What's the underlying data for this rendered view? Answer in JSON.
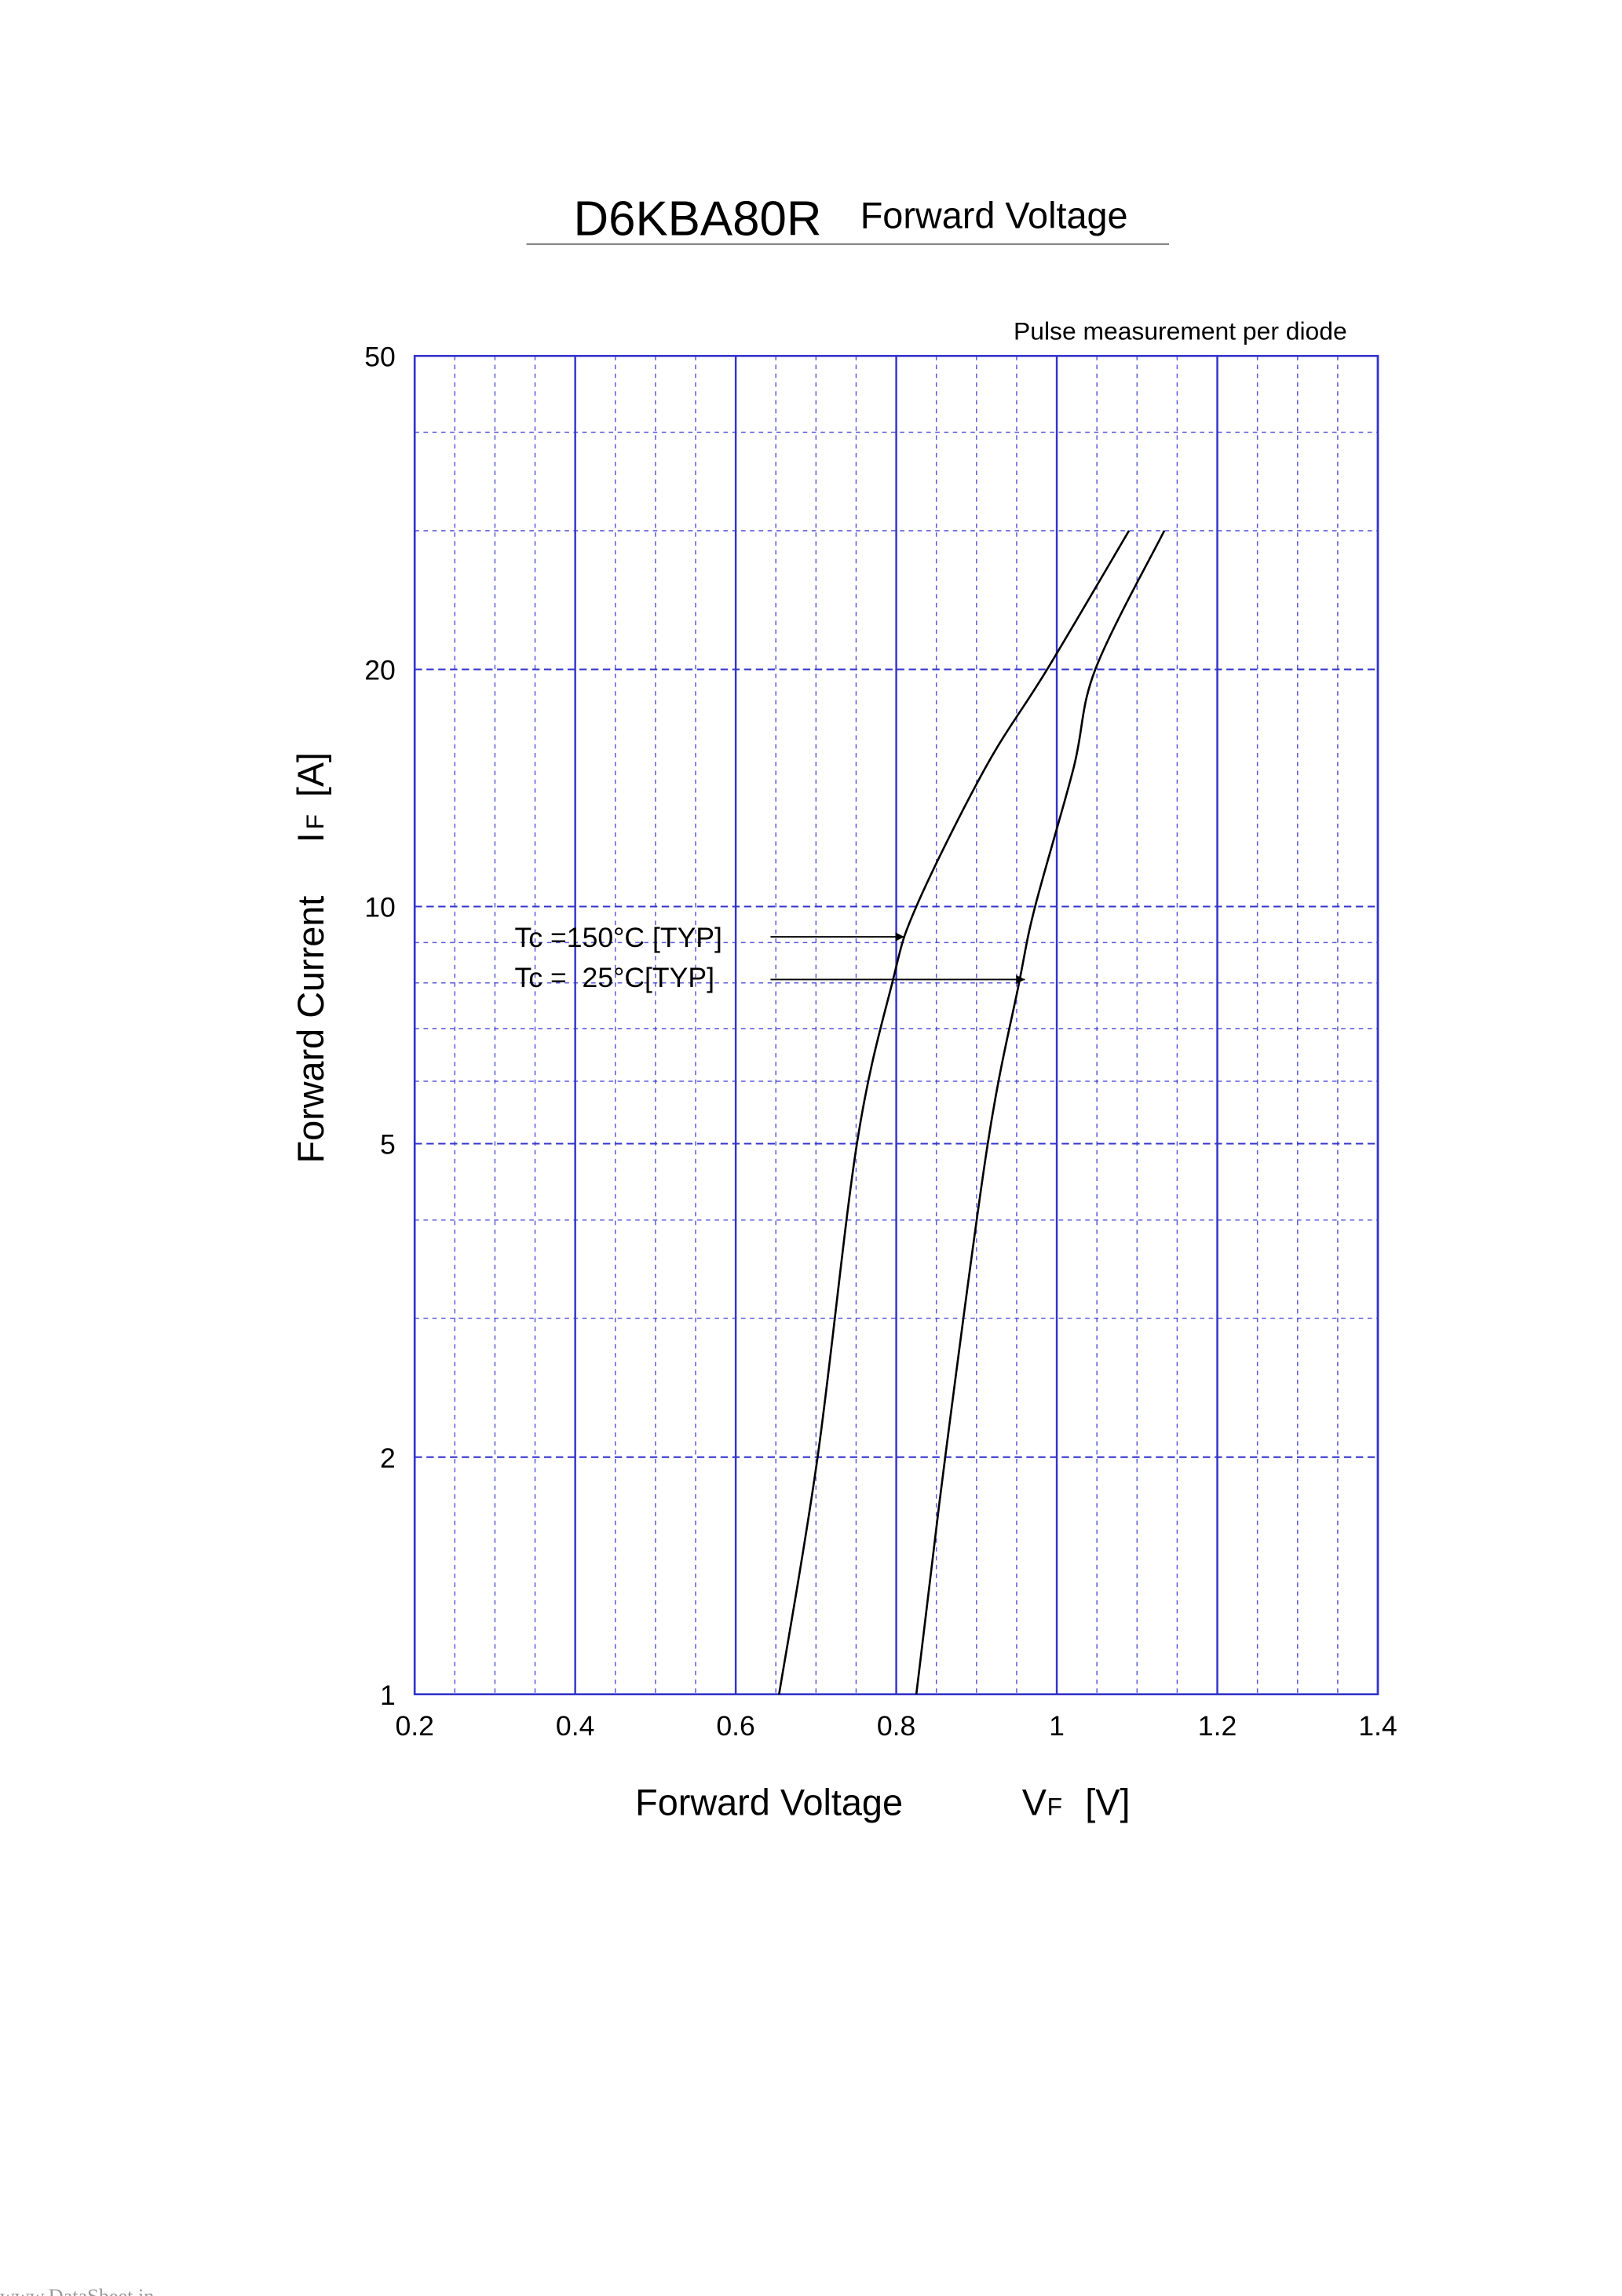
{
  "chart_data": {
    "type": "line",
    "title": "D6KBA80R",
    "subtitle": "Forward Voltage",
    "note": "Pulse measurement per diode",
    "x_label": "Forward Voltage",
    "x_unit": {
      "symbol": "V",
      "subscript": "F",
      "unit": "[V]"
    },
    "y_label": "Forward Current",
    "y_unit": {
      "symbol": "I",
      "subscript": "F",
      "unit": "[A]"
    },
    "xlim": [
      0.2,
      1.4
    ],
    "xticks": [
      0.2,
      0.4,
      0.6,
      0.8,
      1,
      1.2,
      1.4
    ],
    "minor_xticks": [
      0.25,
      0.3,
      0.35,
      0.45,
      0.5,
      0.55,
      0.65,
      0.7,
      0.75,
      0.85,
      0.9,
      0.95,
      1.05,
      1.1,
      1.15,
      1.25,
      1.3,
      1.35
    ],
    "ylim": [
      1,
      50
    ],
    "yticks": [
      1,
      2,
      5,
      10,
      20,
      50
    ],
    "log_y": true,
    "minor_yticks": [
      3,
      4,
      6,
      7,
      8,
      9,
      30,
      40
    ],
    "grid": true,
    "grid_color": "#3333cc",
    "series": [
      {
        "name": "Tc =150°C [TYP]",
        "color": "#000000",
        "x": [
          0.654,
          0.702,
          0.751,
          0.795,
          0.825,
          0.911,
          0.988,
          1.09
        ],
        "values": [
          1,
          2,
          5,
          8,
          10,
          15,
          20,
          30
        ]
      },
      {
        "name": "Tc =  25°C[TYP]",
        "color": "#000000",
        "x": [
          0.825,
          0.861,
          0.914,
          0.953,
          0.973,
          1.021,
          1.048,
          1.134
        ],
        "values": [
          1,
          2,
          5,
          8,
          10,
          15,
          20,
          30
        ]
      }
    ]
  },
  "watermark": "www.DataSheet.in"
}
